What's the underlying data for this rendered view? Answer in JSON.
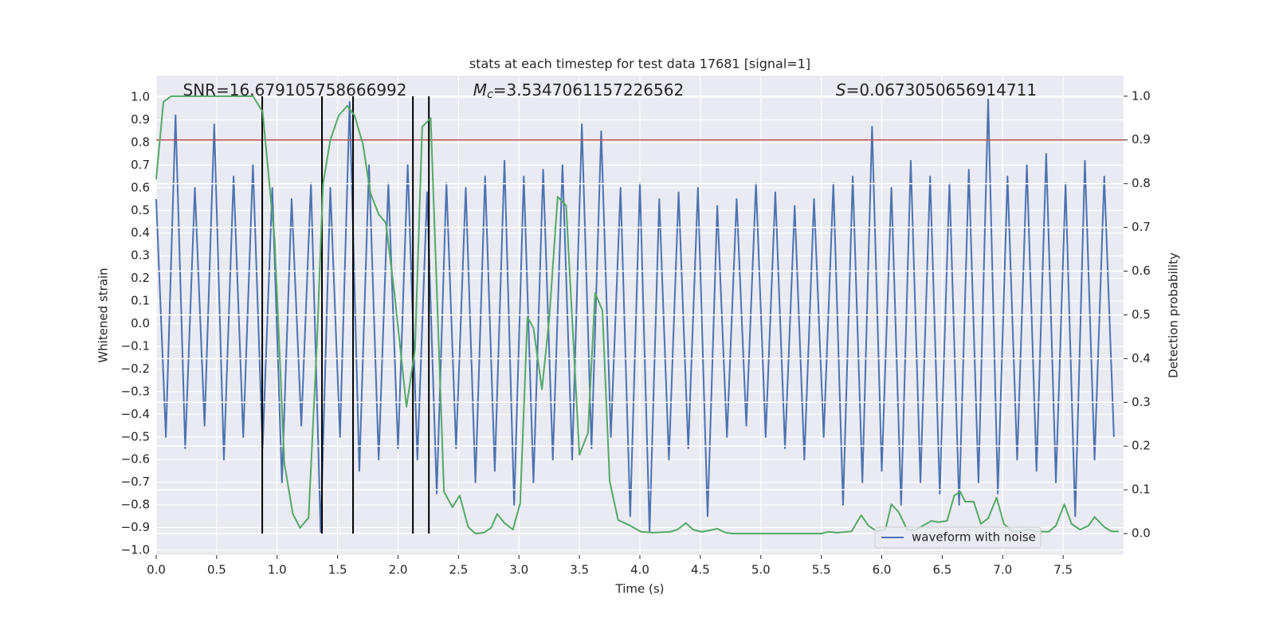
{
  "chart_data": {
    "type": "line",
    "title": "stats at each timestep for test data 17681 [signal=1]",
    "xlabel": "Time (s)",
    "ylabel": "Whitened strain",
    "y2label": "Detection probability",
    "xlim": [
      0,
      8.0
    ],
    "ylim": [
      -1.021,
      1.095
    ],
    "y2lim": [
      -0.049,
      1.047
    ],
    "xticks": [
      {
        "value": 0,
        "label": "0.0"
      },
      {
        "value": 0.5,
        "label": "0.5"
      },
      {
        "value": 1,
        "label": "1.0"
      },
      {
        "value": 1.5,
        "label": "1.5"
      },
      {
        "value": 2,
        "label": "2.0"
      },
      {
        "value": 2.5,
        "label": "2.5"
      },
      {
        "value": 3,
        "label": "3.0"
      },
      {
        "value": 3.5,
        "label": "3.5"
      },
      {
        "value": 4,
        "label": "4.0"
      },
      {
        "value": 4.5,
        "label": "4.5"
      },
      {
        "value": 5,
        "label": "5.0"
      },
      {
        "value": 5.5,
        "label": "5.5"
      },
      {
        "value": 6,
        "label": "6.0"
      },
      {
        "value": 6.5,
        "label": "6.5"
      },
      {
        "value": 7,
        "label": "7.0"
      },
      {
        "value": 7.5,
        "label": "7.5"
      }
    ],
    "yticks": [
      {
        "value": -1,
        "label": "−1.0"
      },
      {
        "value": -0.9,
        "label": "−0.9"
      },
      {
        "value": -0.8,
        "label": "−0.8"
      },
      {
        "value": -0.7,
        "label": "−0.7"
      },
      {
        "value": -0.6,
        "label": "−0.6"
      },
      {
        "value": -0.5,
        "label": "−0.5"
      },
      {
        "value": -0.4,
        "label": "−0.4"
      },
      {
        "value": -0.3,
        "label": "−0.3"
      },
      {
        "value": -0.2,
        "label": "−0.2"
      },
      {
        "value": -0.1,
        "label": "−0.1"
      },
      {
        "value": 0,
        "label": "0.0"
      },
      {
        "value": 0.1,
        "label": "0.1"
      },
      {
        "value": 0.2,
        "label": "0.2"
      },
      {
        "value": 0.3,
        "label": "0.3"
      },
      {
        "value": 0.4,
        "label": "0.4"
      },
      {
        "value": 0.5,
        "label": "0.5"
      },
      {
        "value": 0.6,
        "label": "0.6"
      },
      {
        "value": 0.7,
        "label": "0.7"
      },
      {
        "value": 0.8,
        "label": "0.8"
      },
      {
        "value": 0.9,
        "label": "0.9"
      },
      {
        "value": 1,
        "label": "1.0"
      }
    ],
    "y2ticks": [
      {
        "value": 0,
        "label": "0.0"
      },
      {
        "value": 0.1,
        "label": "0.1"
      },
      {
        "value": 0.2,
        "label": "0.2"
      },
      {
        "value": 0.3,
        "label": "0.3"
      },
      {
        "value": 0.4,
        "label": "0.4"
      },
      {
        "value": 0.5,
        "label": "0.5"
      },
      {
        "value": 0.6,
        "label": "0.6"
      },
      {
        "value": 0.7,
        "label": "0.7"
      },
      {
        "value": 0.8,
        "label": "0.8"
      },
      {
        "value": 0.9,
        "label": "0.9"
      },
      {
        "value": 1,
        "label": "1.0"
      }
    ],
    "grid": true,
    "legend": "lower right",
    "series": [
      {
        "name": "waveform with noise",
        "color": "#4c72b0",
        "x": [
          0,
          0.08,
          0.16,
          0.24,
          0.32,
          0.4,
          0.48,
          0.56,
          0.64,
          0.72,
          0.8,
          0.88,
          0.96,
          1.04,
          1.12,
          1.2,
          1.28,
          1.36,
          1.44,
          1.52,
          1.6,
          1.68,
          1.76,
          1.84,
          1.92,
          2,
          2.08,
          2.16,
          2.24,
          2.32,
          2.4,
          2.48,
          2.56,
          2.64,
          2.72,
          2.8,
          2.88,
          2.96,
          3.04,
          3.12,
          3.2,
          3.28,
          3.36,
          3.44,
          3.52,
          3.6,
          3.68,
          3.76,
          3.84,
          3.92,
          4,
          4.08,
          4.16,
          4.24,
          4.32,
          4.4,
          4.48,
          4.56,
          4.64,
          4.72,
          4.8,
          4.88,
          4.96,
          5.04,
          5.12,
          5.2,
          5.28,
          5.36,
          5.44,
          5.52,
          5.6,
          5.68,
          5.76,
          5.84,
          5.92,
          6,
          6.08,
          6.16,
          6.24,
          6.32,
          6.4,
          6.48,
          6.56,
          6.64,
          6.72,
          6.8,
          6.88,
          6.96,
          7.04,
          7.12,
          7.2,
          7.28,
          7.36,
          7.44,
          7.52,
          7.6,
          7.68,
          7.76,
          7.84,
          7.92
        ],
        "values": [
          0.55,
          -0.5,
          0.92,
          -0.55,
          0.6,
          -0.45,
          0.88,
          -0.6,
          0.65,
          -0.5,
          0.7,
          -0.55,
          0.6,
          -0.7,
          0.55,
          -0.45,
          0.62,
          -0.92,
          0.6,
          -0.5,
          0.98,
          -0.65,
          0.7,
          -0.6,
          0.62,
          -0.55,
          0.7,
          -0.6,
          0.58,
          -0.75,
          0.62,
          -0.55,
          0.6,
          -0.7,
          0.65,
          -0.65,
          0.72,
          -0.8,
          0.65,
          -0.7,
          0.68,
          -0.6,
          0.7,
          -0.6,
          0.88,
          -0.55,
          0.85,
          -0.5,
          0.6,
          -0.85,
          0.62,
          -0.92,
          0.55,
          -0.6,
          0.58,
          -0.55,
          0.6,
          -0.85,
          0.52,
          -0.5,
          0.55,
          -0.45,
          0.62,
          -0.5,
          0.58,
          -0.55,
          0.52,
          -0.6,
          0.55,
          -0.5,
          0.62,
          -0.8,
          0.65,
          -0.7,
          0.87,
          -0.65,
          0.6,
          -0.8,
          0.72,
          -0.7,
          0.65,
          -0.75,
          0.62,
          -0.8,
          0.68,
          -0.7,
          0.99,
          -0.75,
          0.65,
          -0.6,
          0.7,
          -0.65,
          0.75,
          -0.7,
          0.62,
          -0.85,
          0.72,
          -0.6,
          0.65,
          -0.5
        ]
      },
      {
        "color": "#55a868",
        "axis": "y2",
        "x": [
          0,
          0.06,
          0.125,
          0.8,
          0.88,
          0.98,
          1.06,
          1.13,
          1.19,
          1.26,
          1.33,
          1.38,
          1.44,
          1.51,
          1.58,
          1.64,
          1.71,
          1.77,
          1.84,
          1.9,
          1.97,
          2.07,
          2.14,
          2.2,
          2.27,
          2.38,
          2.45,
          2.51,
          2.58,
          2.64,
          2.71,
          2.77,
          2.82,
          2.88,
          2.95,
          3.01,
          3.07,
          3.12,
          3.19,
          3.25,
          3.32,
          3.39,
          3.44,
          3.5,
          3.57,
          3.63,
          3.69,
          3.75,
          3.82,
          3.92,
          4.01,
          4.11,
          4.25,
          4.31,
          4.38,
          4.44,
          4.51,
          4.57,
          4.64,
          4.71,
          4.77,
          5.5,
          5.56,
          5.63,
          5.75,
          5.83,
          5.89,
          5.96,
          6.03,
          6.08,
          6.14,
          6.21,
          6.27,
          6.34,
          6.41,
          6.47,
          6.54,
          6.6,
          6.65,
          6.69,
          6.76,
          6.82,
          6.88,
          6.95,
          7.01,
          7.08,
          7.14,
          7.21,
          7.28,
          7.38,
          7.44,
          7.51,
          7.57,
          7.64,
          7.71,
          7.76,
          7.84,
          7.9,
          7.96
        ],
        "values": [
          0.81,
          0.987,
          1.0,
          1.0,
          0.965,
          0.67,
          0.16,
          0.045,
          0.013,
          0.036,
          0.44,
          0.8,
          0.9,
          0.956,
          0.978,
          0.956,
          0.89,
          0.78,
          0.73,
          0.71,
          0.55,
          0.29,
          0.42,
          0.93,
          0.95,
          0.096,
          0.06,
          0.087,
          0.015,
          0.0,
          0.002,
          0.013,
          0.045,
          0.024,
          0.009,
          0.069,
          0.495,
          0.47,
          0.33,
          0.49,
          0.77,
          0.75,
          0.49,
          0.18,
          0.23,
          0.55,
          0.51,
          0.12,
          0.031,
          0.018,
          0.004,
          0.002,
          0.004,
          0.009,
          0.024,
          0.009,
          0.004,
          0.007,
          0.011,
          0.002,
          0.0,
          0.0,
          0.004,
          0.002,
          0.005,
          0.042,
          0.018,
          0.005,
          0.009,
          0.067,
          0.049,
          0.009,
          0.007,
          0.018,
          0.029,
          0.026,
          0.029,
          0.087,
          0.095,
          0.073,
          0.073,
          0.022,
          0.035,
          0.082,
          0.022,
          0.005,
          0.005,
          0.009,
          0.005,
          0.004,
          0.018,
          0.067,
          0.022,
          0.009,
          0.018,
          0.038,
          0.015,
          0.005,
          0.005
        ]
      }
    ],
    "threshold": {
      "value": 0.9,
      "axis": "y2",
      "color": "#c44e52"
    },
    "vlines": {
      "x": [
        0.877,
        1.371,
        1.628,
        2.123,
        2.255
      ],
      "ymin": 0,
      "ymax": 1,
      "axis": "y2",
      "color": "#000000"
    },
    "annotations": [
      {
        "text": "SNR=16.679105758666992"
      },
      {
        "symbol": "M",
        "subscript": "c",
        "text": "=3.5347061157226562"
      },
      {
        "symbol": "S",
        "text": "=0.0673050656914711"
      }
    ]
  }
}
